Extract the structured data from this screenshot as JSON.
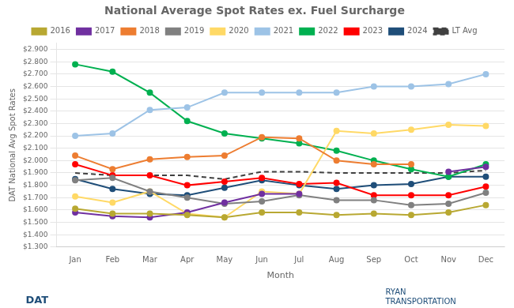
{
  "chart_data": {
    "type": "line",
    "title": "National Average Spot Rates ex. Fuel Surcharge",
    "x_label": "Month",
    "y_label": "DAT National Avg Spot Rates",
    "categories": [
      "Jan",
      "Feb",
      "Mar",
      "Apr",
      "May",
      "Jun",
      "Jul",
      "Aug",
      "Sep",
      "Oct",
      "Nov",
      "Dec"
    ],
    "series": [
      {
        "name": "2016",
        "color": "#b8a832",
        "marker": "circle",
        "line_style": "solid",
        "values": [
          1.61,
          1.57,
          1.57,
          1.56,
          1.54,
          1.58,
          1.58,
          1.56,
          1.57,
          1.56,
          1.58,
          1.64
        ]
      },
      {
        "name": "2017",
        "color": "#7030a0",
        "marker": "circle",
        "line_style": "solid",
        "values": [
          1.58,
          1.55,
          1.54,
          1.58,
          1.66,
          1.73,
          1.73,
          null,
          null,
          null,
          1.91,
          1.95
        ]
      },
      {
        "name": "2018",
        "color": "#ed7d31",
        "marker": "circle",
        "line_style": "solid",
        "values": [
          2.04,
          1.93,
          2.01,
          2.03,
          2.04,
          2.19,
          2.18,
          2.0,
          1.97,
          1.97,
          null,
          null
        ]
      },
      {
        "name": "2019",
        "color": "#808080",
        "marker": "circle",
        "line_style": "solid",
        "values": [
          1.84,
          1.86,
          1.75,
          1.7,
          1.65,
          1.67,
          1.72,
          1.68,
          1.68,
          1.64,
          1.65,
          1.74
        ]
      },
      {
        "name": "2020",
        "color": "#ffd966",
        "marker": "circle",
        "line_style": "solid",
        "values": [
          1.71,
          1.66,
          1.75,
          1.57,
          1.54,
          1.75,
          1.73,
          2.24,
          2.22,
          2.25,
          2.29,
          2.28
        ]
      },
      {
        "name": "2021",
        "color": "#9dc3e6",
        "marker": "circle",
        "line_style": "solid",
        "values": [
          2.2,
          2.22,
          2.41,
          2.43,
          2.55,
          2.55,
          2.55,
          2.55,
          2.6,
          2.6,
          2.62,
          2.7
        ]
      },
      {
        "name": "2022",
        "color": "#00b050",
        "marker": "circle",
        "line_style": "solid",
        "values": [
          2.78,
          2.72,
          2.55,
          2.32,
          2.22,
          2.18,
          2.14,
          2.08,
          2.0,
          1.93,
          1.87,
          1.97
        ]
      },
      {
        "name": "2023",
        "color": "#ff0000",
        "marker": "circle",
        "line_style": "solid",
        "values": [
          1.97,
          1.88,
          1.88,
          1.8,
          1.83,
          1.86,
          1.81,
          1.82,
          1.72,
          1.72,
          1.72,
          1.79
        ]
      },
      {
        "name": "2024",
        "color": "#1f4e79",
        "marker": "circle",
        "line_style": "solid",
        "values": [
          1.85,
          1.77,
          1.73,
          1.72,
          1.78,
          1.84,
          1.8,
          1.77,
          1.8,
          1.81,
          1.87,
          1.87
        ]
      },
      {
        "name": "LT Avg",
        "color": "#404040",
        "marker": "none",
        "line_style": "dashed",
        "values": [
          1.9,
          1.88,
          1.88,
          1.88,
          1.85,
          1.91,
          1.91,
          1.9,
          1.9,
          1.9,
          1.9,
          1.92
        ]
      }
    ],
    "ylim": [
      1.3,
      2.95
    ],
    "yticks": [
      {
        "value": 1.3,
        "label": "$1.300"
      },
      {
        "value": 1.4,
        "label": "$1.400"
      },
      {
        "value": 1.5,
        "label": "$1.500"
      },
      {
        "value": 1.6,
        "label": "$1.600"
      },
      {
        "value": 1.7,
        "label": "$1.700"
      },
      {
        "value": 1.8,
        "label": "$1.800"
      },
      {
        "value": 1.9,
        "label": "$1.900"
      },
      {
        "value": 2.0,
        "label": "$2.000"
      },
      {
        "value": 2.1,
        "label": "$2.100"
      },
      {
        "value": 2.2,
        "label": "$2.200"
      },
      {
        "value": 2.3,
        "label": "$2.300"
      },
      {
        "value": 2.4,
        "label": "$2.400"
      },
      {
        "value": 2.5,
        "label": "$2.500"
      },
      {
        "value": 2.6,
        "label": "$2.600"
      },
      {
        "value": 2.7,
        "label": "$2.700"
      },
      {
        "value": 2.8,
        "label": "$2.800"
      },
      {
        "value": 2.9,
        "label": "$2.900"
      }
    ],
    "grid": "y",
    "legend": "top",
    "annotations": [
      "DAT",
      "RYAN\nTRANSPORTATION"
    ]
  }
}
